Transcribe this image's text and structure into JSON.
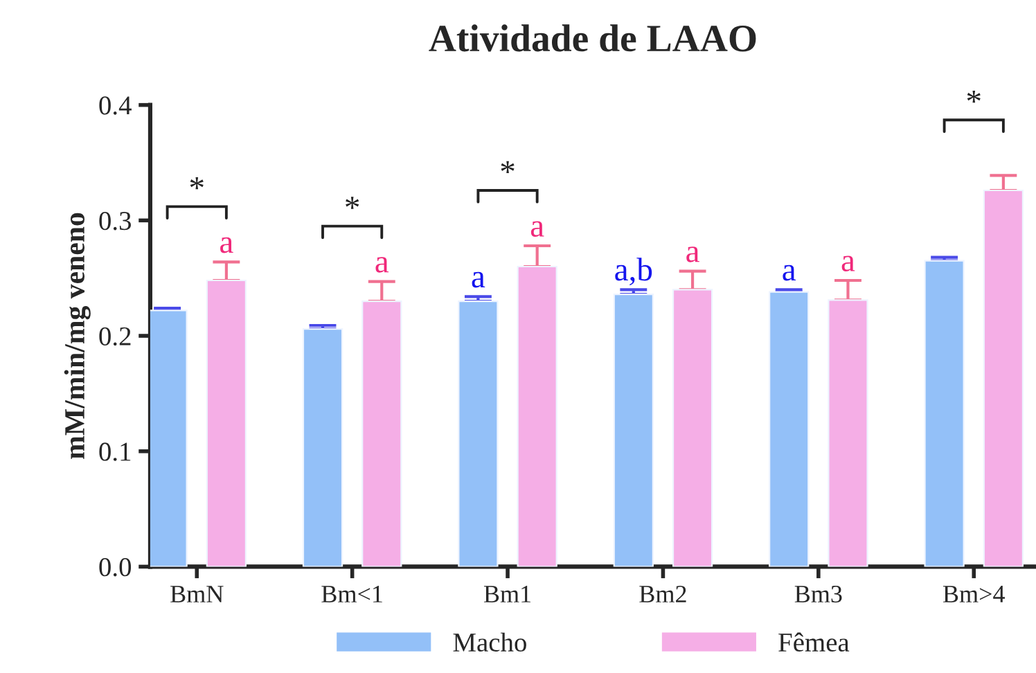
{
  "chart_data": {
    "type": "bar",
    "title": "Atividade de LAAO",
    "ylabel": "mM/min/mg veneno",
    "categories": [
      "BmN",
      "Bm<1",
      "Bm1",
      "Bm2",
      "Bm3",
      "Bm>4"
    ],
    "series": [
      {
        "name": "Macho",
        "color": "#93c0f8",
        "values": [
          0.222,
          0.206,
          0.23,
          0.236,
          0.238,
          0.265
        ],
        "value_labels": [
          null,
          null,
          "a",
          "a,b",
          "a",
          null
        ],
        "errors": [
          [
            0.222,
            0.224
          ],
          [
            0.206,
            0.209
          ],
          [
            0.23,
            0.234
          ],
          [
            0.236,
            0.24
          ],
          [
            0.238,
            0.24
          ],
          [
            0.265,
            0.268
          ]
        ]
      },
      {
        "name": "Fêmea",
        "color": "#f5aee6",
        "values": [
          0.248,
          0.23,
          0.26,
          0.24,
          0.231,
          0.326
        ],
        "value_labels": [
          "a",
          "a",
          "a",
          "a",
          "a",
          null
        ],
        "errors": [
          [
            0.248,
            0.264
          ],
          [
            0.23,
            0.247
          ],
          [
            0.26,
            0.278
          ],
          [
            0.24,
            0.256
          ],
          [
            0.231,
            0.248
          ],
          [
            0.326,
            0.339
          ]
        ]
      }
    ],
    "ylim": [
      0,
      0.4
    ],
    "yticks": [
      {
        "value": 0,
        "label": "0.0"
      },
      0.1,
      0.2,
      0.3,
      0.4
    ],
    "grid": false,
    "legend": "bottom",
    "annotations": [
      "*",
      "*",
      "*",
      "*"
    ]
  }
}
